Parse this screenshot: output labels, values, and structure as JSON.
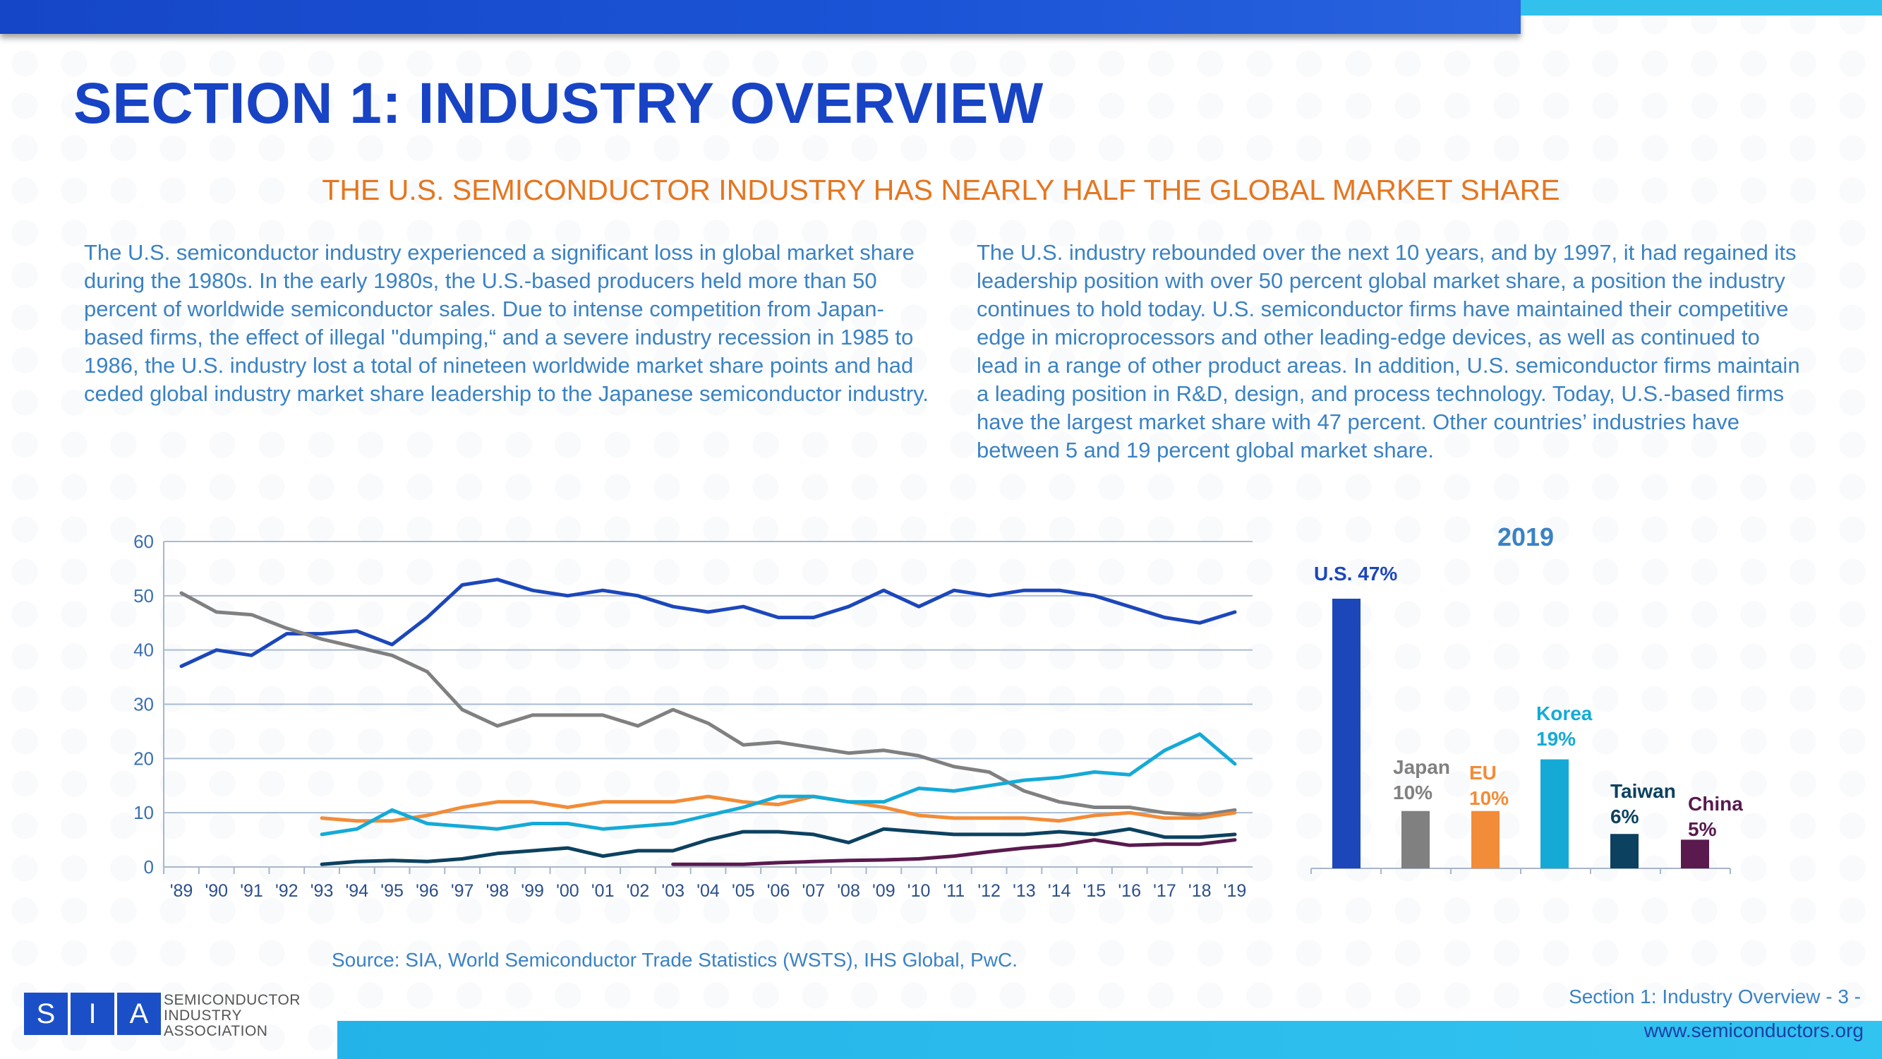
{
  "page": {
    "title": "SECTION 1: INDUSTRY OVERVIEW",
    "subtitle": "THE U.S. SEMICONDUCTOR INDUSTRY HAS NEARLY HALF THE GLOBAL MARKET SHARE",
    "para_left": "The U.S. semiconductor industry experienced a significant loss in global market share during the 1980s. In the early 1980s, the U.S.-based producers held more than 50 percent of worldwide semiconductor sales. Due to intense competition from Japan-based firms, the effect of illegal \"dumping,“ and a severe industry recession in 1985 to 1986, the U.S. industry lost a total of nineteen worldwide market share points and had ceded global industry market share leadership to the Japanese semiconductor industry.",
    "para_right": "The U.S. industry rebounded over the next 10 years, and by 1997, it had regained its leadership position with over 50 percent global market share, a position the industry continues to hold today. U.S. semiconductor firms have maintained their competitive edge in microprocessors and other leading-edge devices, as well as continued to lead in a range of other product areas. In addition, U.S. semiconductor firms maintain a leading position in R&D, design, and process technology. Today, U.S.-based firms have the largest market share with 47 percent. Other countries’ industries have between 5 and 19 percent global market share.",
    "source": "Source: SIA, World Semiconductor Trade Statistics (WSTS), IHS Global, PwC.",
    "footer_section": "Section 1: Industry Overview - 3 -",
    "footer_url": "www.semiconductors.org"
  },
  "logo": {
    "letters": [
      "S",
      "I",
      "A"
    ],
    "line1": "SEMICONDUCTOR",
    "line2": "INDUSTRY",
    "line3": "ASSOCIATION"
  },
  "colors": {
    "title": "#1743c4",
    "subtitle": "#e5761f",
    "body_text": "#3a82c4",
    "US": "#1c47bb",
    "Japan": "#808080",
    "EU": "#f28c38",
    "Korea": "#15aad6",
    "Taiwan": "#0c4160",
    "China": "#5a1a4e"
  },
  "chart_data": [
    {
      "type": "line",
      "title": "",
      "xlabel": "",
      "ylabel": "",
      "ylim": [
        0,
        60
      ],
      "yticks": [
        "0",
        "10",
        "20",
        "30",
        "40",
        "50",
        "60"
      ],
      "categories": [
        "'89",
        "'90",
        "'91",
        "'92",
        "'93",
        "'94",
        "'95",
        "'96",
        "'97",
        "'98",
        "'99",
        "'00",
        "'01",
        "'02",
        "'03",
        "'04",
        "'05",
        "'06",
        "'07",
        "'08",
        "'09",
        "'10",
        "'11",
        "'12",
        "'13",
        "'14",
        "'15",
        "'16",
        "'17",
        "'18",
        "'19"
      ],
      "grid": true,
      "series": [
        {
          "name": "U.S.",
          "color": "#1c47bb",
          "values": [
            37,
            40,
            39,
            43,
            43,
            43.5,
            41,
            46,
            52,
            53,
            51,
            50,
            51,
            50,
            48,
            47,
            48,
            46,
            46,
            48,
            51,
            48,
            51,
            50,
            51,
            51,
            50,
            48,
            46,
            45,
            47
          ]
        },
        {
          "name": "Japan",
          "color": "#808080",
          "values": [
            50.5,
            47,
            46.5,
            44,
            42,
            40.5,
            39,
            36,
            29,
            26,
            28,
            28,
            28,
            26,
            29,
            26.5,
            22.5,
            23,
            22,
            21,
            21.5,
            20.5,
            18.5,
            17.5,
            14,
            12,
            11,
            11,
            10,
            9.5,
            10.5
          ]
        },
        {
          "name": "EU",
          "color": "#f28c38",
          "values": [
            null,
            null,
            null,
            null,
            9,
            8.5,
            8.5,
            9.5,
            11,
            12,
            12,
            11,
            12,
            12,
            12,
            13,
            12,
            11.5,
            13,
            12,
            11,
            9.5,
            9,
            9,
            9,
            8.5,
            9.5,
            10,
            9,
            9,
            10
          ]
        },
        {
          "name": "Korea",
          "color": "#15aad6",
          "values": [
            null,
            null,
            null,
            null,
            6,
            7,
            10.5,
            8,
            7.5,
            7,
            8,
            8,
            7,
            7.5,
            8,
            9.5,
            11,
            13,
            13,
            12,
            12,
            14.5,
            14,
            15,
            16,
            16.5,
            17.5,
            17,
            21.5,
            24.5,
            19
          ]
        },
        {
          "name": "Taiwan",
          "color": "#0c4160",
          "values": [
            null,
            null,
            null,
            null,
            0.5,
            1,
            1.2,
            1,
            1.5,
            2.5,
            3,
            3.5,
            2,
            3,
            3,
            5,
            6.5,
            6.5,
            6,
            4.5,
            7,
            6.5,
            6,
            6,
            6,
            6.5,
            6,
            7,
            5.5,
            5.5,
            6
          ]
        },
        {
          "name": "China",
          "color": "#5a1a4e",
          "values": [
            null,
            null,
            null,
            null,
            null,
            null,
            null,
            null,
            null,
            null,
            null,
            null,
            null,
            null,
            0.5,
            0.5,
            0.5,
            0.8,
            1,
            1.2,
            1.3,
            1.5,
            2,
            2.8,
            3.5,
            4,
            5,
            4,
            4.2,
            4.2,
            5
          ]
        }
      ]
    },
    {
      "type": "bar",
      "title": "2019",
      "categories": [
        "U.S.",
        "Japan",
        "EU",
        "Korea",
        "Taiwan",
        "China"
      ],
      "values": [
        47,
        10,
        10,
        19,
        6,
        5
      ],
      "data_labels": [
        "U.S. 47%",
        "Japan 10%",
        "EU 10%",
        "Korea 19%",
        "Taiwan 6%",
        "China 5%"
      ],
      "colors": [
        "#1c47bb",
        "#808080",
        "#f28c38",
        "#15aad6",
        "#0c4160",
        "#5a1a4e"
      ],
      "ylim": [
        0,
        47
      ]
    }
  ]
}
